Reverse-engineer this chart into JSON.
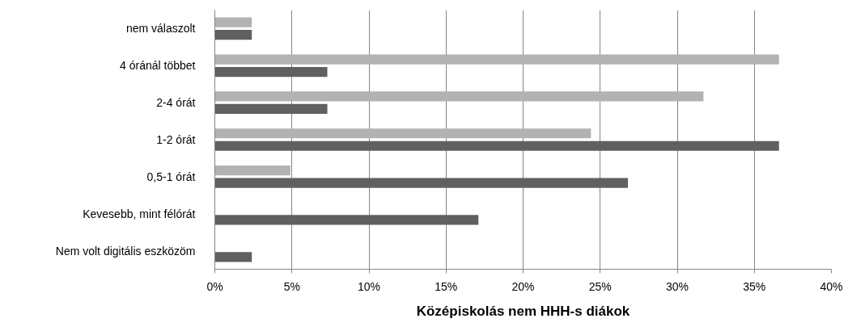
{
  "chart_data": {
    "type": "bar",
    "orientation": "horizontal",
    "xlabel": "Középiskolás nem HHH-s diákok",
    "categories": [
      "nem válaszolt",
      "4 óránál többet",
      "2-4 órát",
      "1-2 órát",
      "0,5-1 órát",
      "Kevesebb, mint félórát",
      "Nem volt digitális eszközöm"
    ],
    "series": [
      {
        "color": "#b2b2b2",
        "values": [
          2.4,
          36.6,
          31.7,
          24.4,
          4.9,
          0,
          0
        ]
      },
      {
        "color": "#606060",
        "values": [
          2.4,
          7.3,
          7.3,
          36.6,
          26.8,
          17.1,
          2.4
        ]
      }
    ],
    "xlim": [
      0,
      40
    ],
    "xticks": [
      {
        "value": 0,
        "label": "0%"
      },
      {
        "value": 5,
        "label": "5%"
      },
      {
        "value": 10,
        "label": "10%"
      },
      {
        "value": 15,
        "label": "15%"
      },
      {
        "value": 20,
        "label": "20%"
      },
      {
        "value": 25,
        "label": "25%"
      },
      {
        "value": 30,
        "label": "30%"
      },
      {
        "value": 35,
        "label": "35%"
      },
      {
        "value": 40,
        "label": "40%"
      }
    ],
    "grid": "x"
  }
}
